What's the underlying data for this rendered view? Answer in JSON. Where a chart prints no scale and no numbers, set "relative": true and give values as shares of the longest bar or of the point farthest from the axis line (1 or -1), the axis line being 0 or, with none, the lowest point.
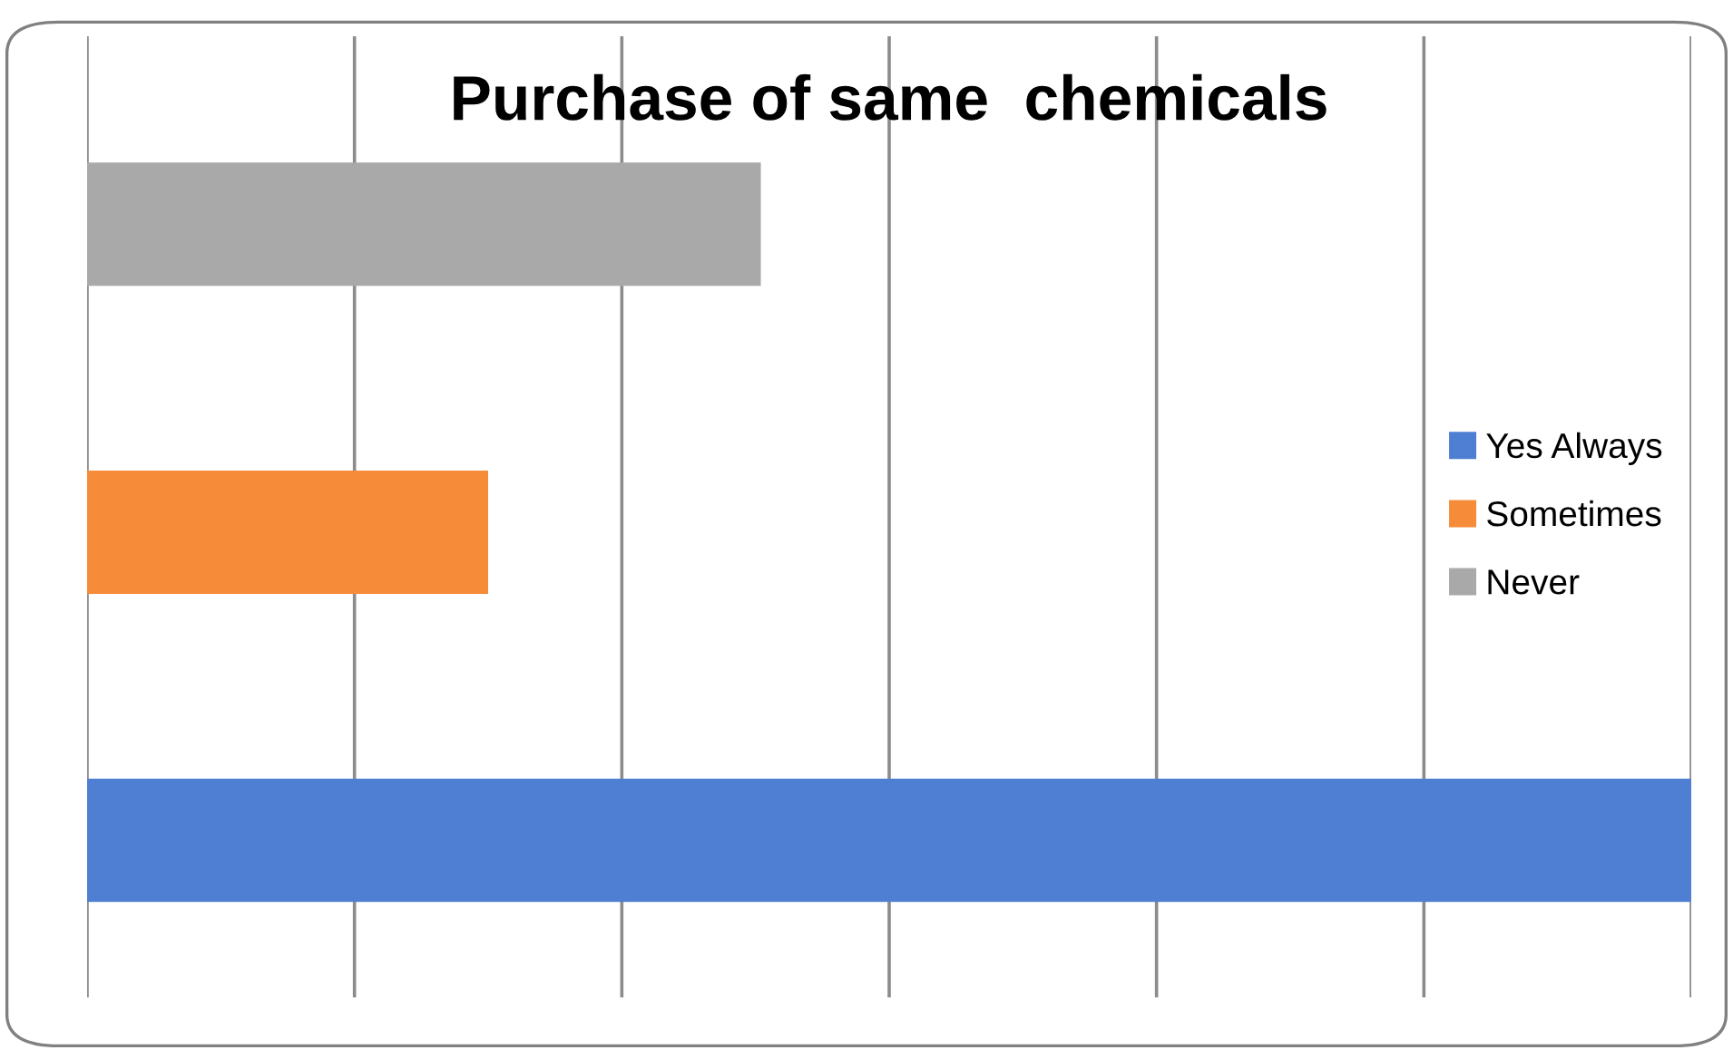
{
  "chart_data": {
    "type": "bar",
    "orientation": "horizontal",
    "stacked": true,
    "relative": true,
    "title": "Purchase of same  chemicals",
    "categories": [
      null,
      null,
      null
    ],
    "series": [
      {
        "name": "Yes Always",
        "color": "#4e7fd2",
        "values": [
          null,
          null,
          1
        ]
      },
      {
        "name": "Sometimes",
        "color": "#f68b3a",
        "values": [
          null,
          0.25,
          null
        ]
      },
      {
        "name": "Never",
        "color": "#a9a9a9",
        "values": [
          0.42,
          null,
          null
        ]
      }
    ],
    "grid": "x",
    "legend": "right"
  }
}
